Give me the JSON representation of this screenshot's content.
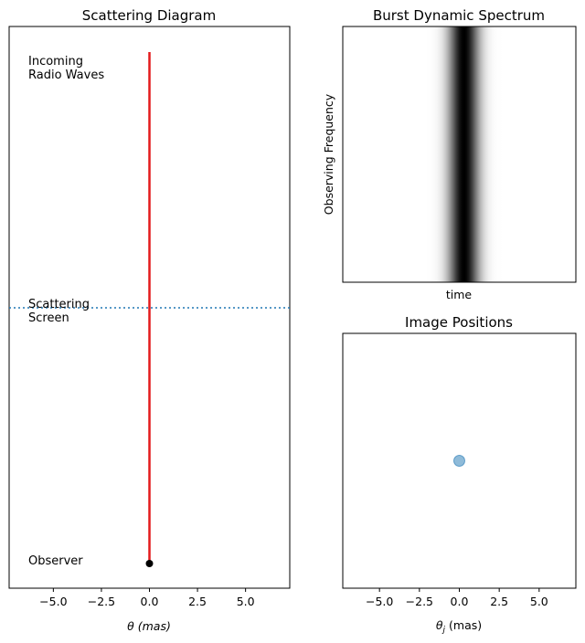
{
  "chart_data": [
    {
      "panel": "scattering-diagram",
      "type": "line",
      "title": "Scattering Diagram",
      "xlabel": "θ (mas)",
      "ylabel": "",
      "xlim": [
        -7.3,
        7.3
      ],
      "xticks": [
        -5.0,
        -2.5,
        0.0,
        2.5,
        5.0
      ],
      "xtick_labels": [
        "−5.0",
        "−2.5",
        "0.0",
        "2.5",
        "5.0"
      ],
      "yticks_shown": false,
      "grid": false,
      "ray": {
        "color": "#e41a1c",
        "x": 0.0
      },
      "scattering_screen": {
        "color": "#1f77b4",
        "style": "dotted"
      },
      "observer_marker": {
        "color": "#000000",
        "x": 0.0
      },
      "annotations": {
        "incoming": [
          "Incoming",
          "Radio Waves"
        ],
        "screen": [
          "Scattering",
          "Screen"
        ],
        "observer": [
          "Observer"
        ]
      }
    },
    {
      "panel": "burst-dynamic-spectrum",
      "type": "heatmap",
      "title": "Burst Dynamic Spectrum",
      "xlabel": "time",
      "ylabel": "Observing Frequency",
      "colormap": "gray_r",
      "pulse_center_fraction": 0.52,
      "pulse_width_fraction": 0.045,
      "ticks_shown": false
    },
    {
      "panel": "image-positions",
      "type": "scatter",
      "title": "Image Positions",
      "xlabel": "θ_j (mas)",
      "ylabel": "",
      "xlim": [
        -7.3,
        7.3
      ],
      "xticks": [
        -5.0,
        -2.5,
        0.0,
        2.5,
        5.0
      ],
      "xtick_labels": [
        "−5.0",
        "−2.5",
        "0.0",
        "2.5",
        "5.0"
      ],
      "points": [
        {
          "x": 0.0,
          "y": 0.0
        }
      ],
      "point_color": "#1f77b4",
      "point_alpha": 0.5,
      "grid": false
    }
  ]
}
